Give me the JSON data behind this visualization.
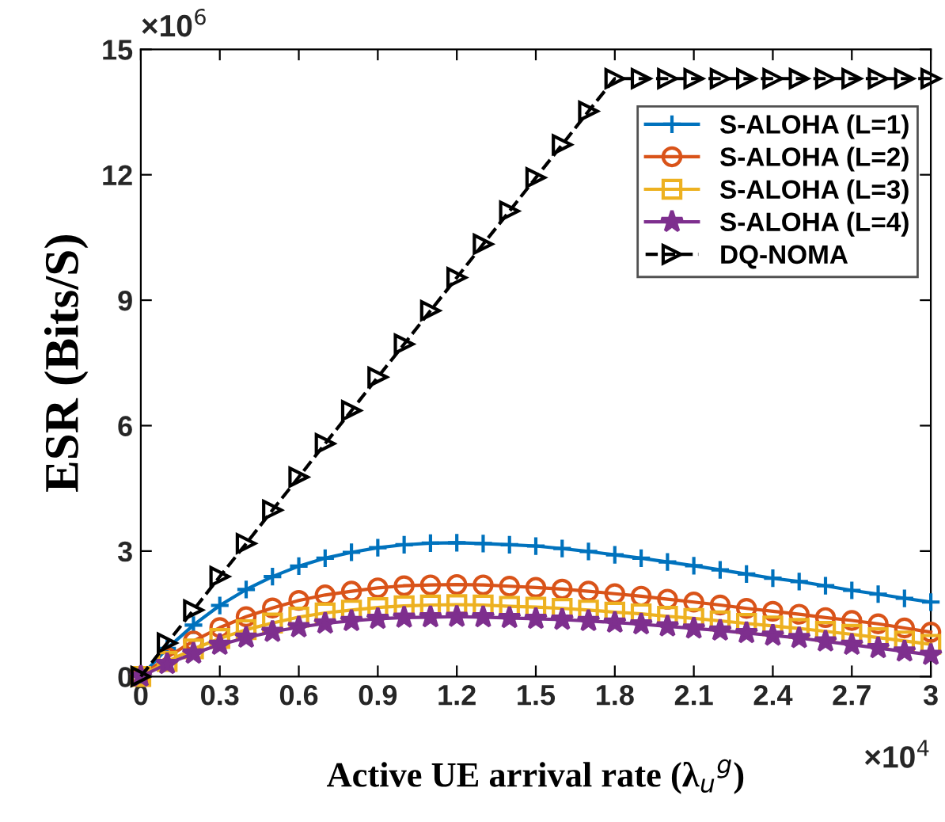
{
  "chart_data": {
    "type": "line",
    "xlabel": "Active UE arrival rate (λ$_{u}$$^{g}$)",
    "ylabel": "ESR (Bits/S)",
    "x": [
      0,
      0.1,
      0.2,
      0.3,
      0.4,
      0.5,
      0.6,
      0.7,
      0.8,
      0.9,
      1.0,
      1.1,
      1.2,
      1.3,
      1.4,
      1.5,
      1.6,
      1.7,
      1.8,
      1.9,
      2.0,
      2.1,
      2.2,
      2.3,
      2.4,
      2.5,
      2.6,
      2.7,
      2.8,
      2.9,
      3.0
    ],
    "series": [
      {
        "name": "S-ALOHA (L=1)",
        "color": "#0072bd",
        "marker": "cross",
        "line_style": "solid",
        "values": [
          0,
          0.67,
          1.23,
          1.7,
          2.08,
          2.39,
          2.64,
          2.83,
          2.97,
          3.08,
          3.15,
          3.19,
          3.2,
          3.18,
          3.15,
          3.12,
          3.06,
          2.99,
          2.91,
          2.83,
          2.74,
          2.65,
          2.55,
          2.45,
          2.35,
          2.27,
          2.17,
          2.06,
          1.97,
          1.87,
          1.78
        ]
      },
      {
        "name": "S-ALOHA (L=2)",
        "color": "#d95319",
        "marker": "circle",
        "line_style": "solid",
        "values": [
          0,
          0.46,
          0.85,
          1.17,
          1.43,
          1.64,
          1.82,
          1.95,
          2.04,
          2.12,
          2.17,
          2.19,
          2.2,
          2.19,
          2.16,
          2.13,
          2.09,
          2.04,
          1.98,
          1.92,
          1.85,
          1.78,
          1.71,
          1.63,
          1.56,
          1.49,
          1.41,
          1.34,
          1.26,
          1.16,
          1.06
        ]
      },
      {
        "name": "S-ALOHA (L=3)",
        "color": "#edb120",
        "marker": "square",
        "line_style": "solid",
        "values": [
          0,
          0.36,
          0.66,
          0.91,
          1.12,
          1.28,
          1.42,
          1.52,
          1.59,
          1.65,
          1.69,
          1.71,
          1.72,
          1.71,
          1.68,
          1.66,
          1.63,
          1.59,
          1.54,
          1.5,
          1.44,
          1.39,
          1.33,
          1.27,
          1.21,
          1.15,
          1.08,
          1.01,
          0.93,
          0.85,
          0.77
        ]
      },
      {
        "name": "S-ALOHA (L=4)",
        "color": "#7e2f8e",
        "marker": "star",
        "line_style": "solid",
        "values": [
          0,
          0.3,
          0.55,
          0.76,
          0.93,
          1.07,
          1.18,
          1.27,
          1.33,
          1.38,
          1.41,
          1.42,
          1.43,
          1.42,
          1.4,
          1.38,
          1.36,
          1.33,
          1.29,
          1.25,
          1.2,
          1.15,
          1.1,
          1.04,
          0.98,
          0.92,
          0.84,
          0.76,
          0.68,
          0.6,
          0.52
        ]
      },
      {
        "name": "DQ-NOMA",
        "color": "#000000",
        "marker": "triangle",
        "line_style": "dashed",
        "values": [
          0,
          0.8,
          1.59,
          2.39,
          3.18,
          3.98,
          4.77,
          5.57,
          6.36,
          7.16,
          7.95,
          8.75,
          9.54,
          10.34,
          11.13,
          11.93,
          12.72,
          13.52,
          14.3,
          14.3,
          14.3,
          14.3,
          14.3,
          14.3,
          14.3,
          14.3,
          14.3,
          14.3,
          14.3,
          14.3,
          14.3
        ]
      }
    ],
    "xlim": [
      0,
      3
    ],
    "xticks": [
      0,
      0.3,
      0.6,
      0.9,
      1.2,
      1.5,
      1.8,
      2.1,
      2.4,
      2.7,
      3
    ],
    "ylim": [
      0,
      15
    ],
    "yticks": [
      0,
      3,
      6,
      9,
      12,
      15
    ],
    "annotations": [
      "×10$^{6}$",
      "×10$^{4}$"
    ],
    "legend": "top right",
    "grid": false
  }
}
